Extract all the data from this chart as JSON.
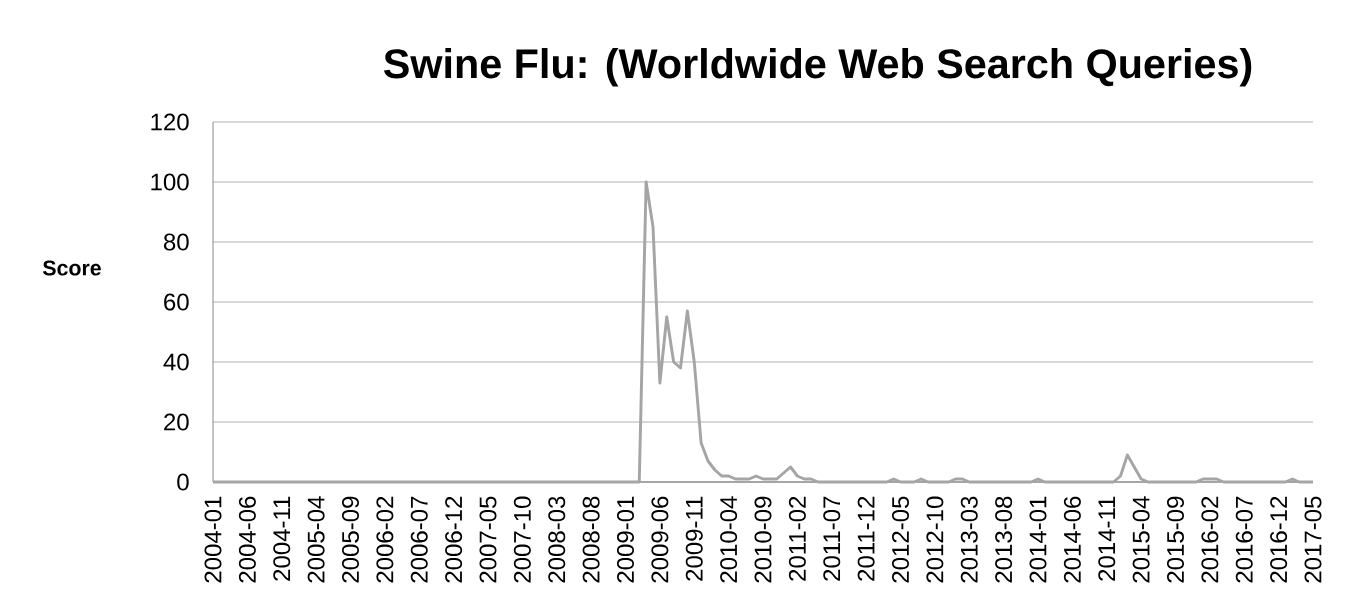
{
  "chart_data": {
    "type": "line",
    "title": "Swine Flu: (Worldwide Web Search Queries)",
    "ylabel": "Score",
    "categories": [
      "2004-01",
      null,
      null,
      null,
      null,
      "2004-06",
      null,
      null,
      null,
      null,
      "2004-11",
      null,
      null,
      null,
      null,
      "2005-04",
      null,
      null,
      null,
      null,
      "2005-09",
      null,
      null,
      null,
      null,
      "2006-02",
      null,
      null,
      null,
      null,
      "2006-07",
      null,
      null,
      null,
      null,
      "2006-12",
      null,
      null,
      null,
      null,
      "2007-05",
      null,
      null,
      null,
      null,
      "2007-10",
      null,
      null,
      null,
      null,
      "2008-03",
      null,
      null,
      null,
      null,
      "2008-08",
      null,
      null,
      null,
      null,
      "2009-01",
      null,
      null,
      null,
      null,
      "2009-06",
      null,
      null,
      null,
      null,
      "2009-11",
      null,
      null,
      null,
      null,
      "2010-04",
      null,
      null,
      null,
      null,
      "2010-09",
      null,
      null,
      null,
      null,
      "2011-02",
      null,
      null,
      null,
      null,
      "2011-07",
      null,
      null,
      null,
      null,
      "2011-12",
      null,
      null,
      null,
      null,
      "2012-05",
      null,
      null,
      null,
      null,
      "2012-10",
      null,
      null,
      null,
      null,
      "2013-03",
      null,
      null,
      null,
      null,
      "2013-08",
      null,
      null,
      null,
      null,
      "2014-01",
      null,
      null,
      null,
      null,
      "2014-06",
      null,
      null,
      null,
      null,
      "2014-11",
      null,
      null,
      null,
      null,
      "2015-04",
      null,
      null,
      null,
      null,
      "2015-09",
      null,
      null,
      null,
      null,
      "2016-02",
      null,
      null,
      null,
      null,
      "2016-07",
      null,
      null,
      null,
      null,
      "2016-12",
      null,
      null,
      null,
      null,
      "2017-05"
    ],
    "values": [
      0,
      0,
      0,
      0,
      0,
      0,
      0,
      0,
      0,
      0,
      0,
      0,
      0,
      0,
      0,
      0,
      0,
      0,
      0,
      0,
      0,
      0,
      0,
      0,
      0,
      0,
      0,
      0,
      0,
      0,
      0,
      0,
      0,
      0,
      0,
      0,
      0,
      0,
      0,
      0,
      0,
      0,
      0,
      0,
      0,
      0,
      0,
      0,
      0,
      0,
      0,
      0,
      0,
      0,
      0,
      0,
      0,
      0,
      0,
      0,
      0,
      0,
      0,
      100,
      85,
      33,
      55,
      40,
      38,
      57,
      40,
      13,
      7,
      4,
      2,
      2,
      1,
      1,
      1,
      2,
      1,
      1,
      1,
      3,
      5,
      2,
      1,
      1,
      0,
      0,
      0,
      0,
      0,
      0,
      0,
      0,
      0,
      0,
      0,
      1,
      0,
      0,
      0,
      1,
      0,
      0,
      0,
      0,
      1,
      1,
      0,
      0,
      0,
      0,
      0,
      0,
      0,
      0,
      0,
      0,
      1,
      0,
      0,
      0,
      0,
      0,
      0,
      0,
      0,
      0,
      0,
      0,
      2,
      9,
      5,
      1,
      0,
      0,
      0,
      0,
      0,
      0,
      0,
      0,
      1,
      1,
      1,
      0,
      0,
      0,
      0,
      0,
      0,
      0,
      0,
      0,
      0,
      1,
      0,
      0,
      0
    ],
    "color": "#a5a5a5",
    "ylim": [
      0,
      120
    ],
    "yticks": [
      0,
      20,
      40,
      60,
      80,
      100,
      120
    ],
    "grid": "y",
    "marker": "none",
    "line_style": "solid"
  }
}
